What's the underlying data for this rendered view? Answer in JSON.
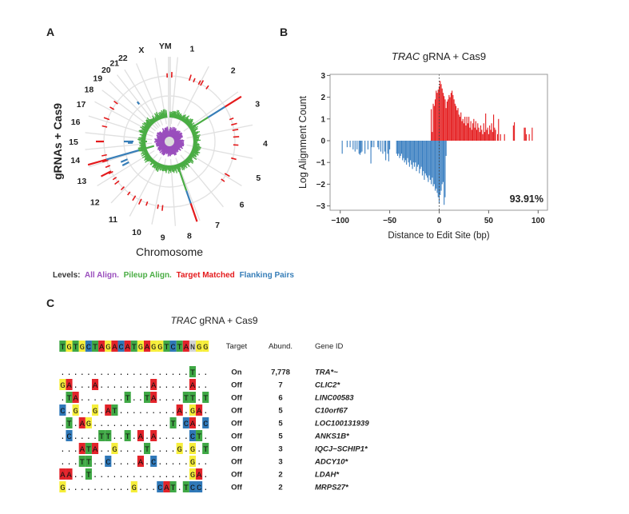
{
  "panels": {
    "a": {
      "label": "A",
      "ylabel": "gRNAs + Cas9",
      "xlabel": "Chromosome",
      "chromosomes": [
        "1",
        "2",
        "3",
        "4",
        "5",
        "6",
        "7",
        "8",
        "9",
        "10",
        "11",
        "12",
        "13",
        "14",
        "15",
        "16",
        "17",
        "18",
        "19",
        "20",
        "21",
        "22",
        "X",
        "YM"
      ],
      "legend": {
        "prefix": "Levels:",
        "items": [
          {
            "label": "All Align.",
            "color": "#9a4fbd"
          },
          {
            "label": "Pileup Align.",
            "color": "#4aad44"
          },
          {
            "label": "Target Matched",
            "color": "#e41a1c"
          },
          {
            "label": "Flanking Pairs",
            "color": "#377eb8"
          }
        ]
      }
    },
    "b": {
      "label": "B"
    },
    "c": {
      "label": "C",
      "title_gene": "TRAC",
      "title_rest": " gRNA + Cas9",
      "reference": "TGTGCTAGACATGAGGTCTANGG",
      "headers": {
        "target": "Target",
        "abund": "Abund.",
        "gene": "Gene ID"
      },
      "base_colors": {
        "A": "#e3232a",
        "T": "#3fa845",
        "G": "#f6ee3a",
        "C": "#2f78b8",
        "N": "#d4d4d4"
      },
      "rows": [
        {
          "seq": "....................T..",
          "target": "On",
          "abund": "7,778",
          "gene": "TRA*~"
        },
        {
          "seq": "GA...A........A.....A..",
          "target": "Off",
          "abund": "7",
          "gene": "CLIC2*"
        },
        {
          "seq": ".TA.......T..TA....TT.T",
          "target": "Off",
          "abund": "6",
          "gene": "LINC00583"
        },
        {
          "seq": "C.G..G.AT.........A.GA.",
          "target": "Off",
          "abund": "5",
          "gene": "C10orf67"
        },
        {
          "seq": ".T.AG............T.CA.C",
          "target": "Off",
          "abund": "5",
          "gene": "LOC100131939"
        },
        {
          "seq": ".C....TT..T.A.A.....CT.",
          "target": "Off",
          "abund": "5",
          "gene": "ANKS1B*"
        },
        {
          "seq": "...ATA..G....T....G.G.T",
          "target": "Off",
          "abund": "3",
          "gene": "IQCJ−SCHIP1*"
        },
        {
          "seq": "...TT..C....A.C.....G..",
          "target": "Off",
          "abund": "3",
          "gene": "ADCY10*"
        },
        {
          "seq": "AA..T...............GA.",
          "target": "Off",
          "abund": "2",
          "gene": "LDAH*"
        },
        {
          "seq": "G..........G...CAT.TCC.",
          "target": "Off",
          "abund": "2",
          "gene": "MRPS27*"
        }
      ]
    }
  },
  "chart_data": [
    {
      "type": "bar",
      "title": "TRAC gRNA + Cas9",
      "title_gene": "TRAC",
      "title_rest": " gRNA + Cas9",
      "xlabel": "Distance to Edit Site (bp)",
      "ylabel": "Log Alignment Count",
      "xlim": [
        -110,
        110
      ],
      "ylim": [
        -3.2,
        3.2
      ],
      "xticks": [
        "−100",
        "−50",
        "0",
        "50",
        "100"
      ],
      "xtick_values": [
        -100,
        -50,
        0,
        50,
        100
      ],
      "yticks": [
        "3",
        "2",
        "1",
        "0",
        "−1",
        "−2",
        "−3"
      ],
      "ytick_values": [
        3,
        2,
        1,
        0,
        -1,
        -2,
        -3
      ],
      "annotation": "93.91%",
      "reference_line_x": 0,
      "grid": false,
      "series": [
        {
          "color": "#e41a1c",
          "x": [
            -8,
            -7,
            -6,
            -5,
            -4,
            -3,
            -2,
            -1,
            0,
            1,
            2,
            3,
            4,
            5,
            6,
            7,
            8,
            9,
            10,
            11,
            12,
            13,
            14,
            15,
            16,
            17,
            18,
            19,
            20,
            21,
            22,
            23,
            24,
            25,
            26,
            27,
            28,
            29,
            30,
            31,
            32,
            33,
            34,
            35,
            36,
            37,
            38,
            39,
            40,
            41,
            42,
            43,
            44,
            45,
            46,
            47,
            48,
            49,
            50,
            51,
            52,
            53,
            54,
            55,
            56,
            57,
            59,
            60,
            62,
            66,
            75,
            76,
            86,
            87,
            88,
            91,
            94
          ],
          "values": [
            1.45,
            0.4,
            1.7,
            1.6,
            1.9,
            2.3,
            2.2,
            2.35,
            2.5,
            2.75,
            2.6,
            2.4,
            2.2,
            2.05,
            1.9,
            1.5,
            1.8,
            1.9,
            2.1,
            2.0,
            2.2,
            2.3,
            2.1,
            1.9,
            1.7,
            1.6,
            1.4,
            1.5,
            1.2,
            1.1,
            1.3,
            0.9,
            1.0,
            0.8,
            1.1,
            0.7,
            1.1,
            0.8,
            1.1,
            0.6,
            0.9,
            0.5,
            0.8,
            1.0,
            0.6,
            0.9,
            0.5,
            0.8,
            0.6,
            0.4,
            0.7,
            0.5,
            0.3,
            0.8,
            0.4,
            1.25,
            0.5,
            0.6,
            0.3,
            0.7,
            0.5,
            0.8,
            0.4,
            1.2,
            0.6,
            0.5,
            0.3,
            1.0,
            0.3,
            0.3,
            0.7,
            0.85,
            0.6,
            0.6,
            0.3,
            0.3,
            0.6
          ]
        },
        {
          "color": "#3a7fc1",
          "x": [
            -98,
            -93,
            -90,
            -87,
            -85,
            -83,
            -81,
            -80,
            -79,
            -78,
            -75,
            -72,
            -69,
            -68,
            -66,
            -62,
            -61,
            -59,
            -57,
            -55,
            -54,
            -52,
            -51,
            -50,
            -43,
            -42,
            -41,
            -40,
            -39,
            -38,
            -37,
            -36,
            -35,
            -34,
            -33,
            -32,
            -31,
            -30,
            -29,
            -28,
            -27,
            -26,
            -25,
            -24,
            -23,
            -22,
            -21,
            -20,
            -19,
            -18,
            -17,
            -16,
            -15,
            -14,
            -13,
            -12,
            -11,
            -10,
            -9,
            -8,
            -7,
            -6,
            -5,
            -4,
            -3,
            -2,
            -1,
            0,
            1,
            2,
            3,
            4,
            5,
            6,
            7
          ],
          "values": [
            -0.6,
            -0.3,
            -0.3,
            -0.4,
            -0.5,
            -0.4,
            -0.6,
            -0.65,
            -0.55,
            -0.5,
            -0.6,
            -0.4,
            -1.05,
            -0.3,
            -0.3,
            -0.3,
            -0.4,
            -0.5,
            -0.6,
            -0.5,
            -0.9,
            -0.6,
            -0.95,
            -0.4,
            -0.6,
            -0.7,
            -0.6,
            -0.8,
            -0.7,
            -0.6,
            -0.9,
            -0.8,
            -1.0,
            -0.9,
            -1.1,
            -0.8,
            -1.0,
            -1.2,
            -0.9,
            -1.1,
            -1.3,
            -1.0,
            -1.2,
            -1.0,
            -1.4,
            -1.2,
            -1.1,
            -1.5,
            -1.3,
            -1.2,
            -1.6,
            -1.4,
            -1.8,
            -1.5,
            -1.6,
            -1.7,
            -1.9,
            -1.6,
            -1.8,
            -2.0,
            -1.7,
            -2.1,
            -2.0,
            -2.3,
            -2.2,
            -2.4,
            -2.6,
            -2.9,
            -2.5,
            -2.3,
            -2.0,
            -1.9,
            -2.95,
            -2.6,
            -0.7
          ]
        }
      ]
    }
  ]
}
